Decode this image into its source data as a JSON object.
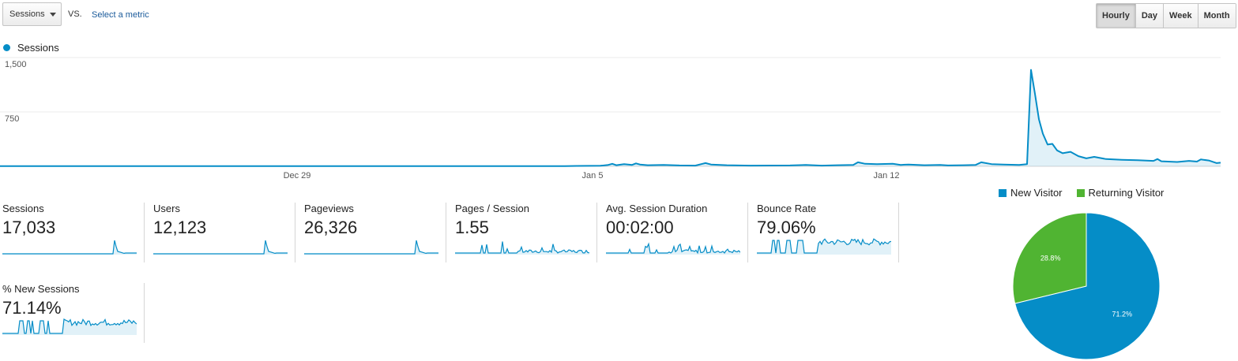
{
  "controls": {
    "metric_select": "Sessions",
    "vs": "VS.",
    "select_metric": "Select a metric",
    "granularity": [
      "Hourly",
      "Day",
      "Week",
      "Month"
    ],
    "granularity_active": "Hourly"
  },
  "chart_data": [
    {
      "type": "line",
      "legend": "Sessions",
      "color": "#058dc7",
      "y_ticks": [
        "1,500",
        "750"
      ],
      "x_labels": [
        "Dec 29",
        "Jan 5",
        "Jan 12"
      ],
      "ylim": [
        0,
        1500
      ],
      "grid": true,
      "series": [
        {
          "name": "Sessions",
          "points": [
            [
              0,
              2
            ],
            [
              715,
              2
            ],
            [
              730,
              5
            ],
            [
              760,
              8
            ],
            [
              770,
              20
            ],
            [
              775,
              35
            ],
            [
              780,
              15
            ],
            [
              790,
              30
            ],
            [
              800,
              20
            ],
            [
              805,
              40
            ],
            [
              810,
              25
            ],
            [
              820,
              15
            ],
            [
              840,
              20
            ],
            [
              860,
              12
            ],
            [
              880,
              10
            ],
            [
              893,
              45
            ],
            [
              900,
              25
            ],
            [
              920,
              15
            ],
            [
              950,
              10
            ],
            [
              1000,
              12
            ],
            [
              1020,
              18
            ],
            [
              1040,
              10
            ],
            [
              1060,
              15
            ],
            [
              1080,
              20
            ],
            [
              1086,
              55
            ],
            [
              1095,
              35
            ],
            [
              1110,
              30
            ],
            [
              1130,
              35
            ],
            [
              1140,
              20
            ],
            [
              1150,
              25
            ],
            [
              1170,
              15
            ],
            [
              1190,
              18
            ],
            [
              1200,
              12
            ],
            [
              1220,
              15
            ],
            [
              1235,
              20
            ],
            [
              1242,
              55
            ],
            [
              1255,
              30
            ],
            [
              1270,
              25
            ],
            [
              1290,
              20
            ],
            [
              1300,
              30
            ],
            [
              1305,
              1330
            ],
            [
              1310,
              1000
            ],
            [
              1315,
              650
            ],
            [
              1320,
              450
            ],
            [
              1326,
              300
            ],
            [
              1332,
              310
            ],
            [
              1338,
              220
            ],
            [
              1345,
              180
            ],
            [
              1355,
              200
            ],
            [
              1365,
              140
            ],
            [
              1375,
              110
            ],
            [
              1385,
              130
            ],
            [
              1400,
              100
            ],
            [
              1420,
              90
            ],
            [
              1440,
              85
            ],
            [
              1460,
              75
            ],
            [
              1465,
              100
            ],
            [
              1470,
              70
            ],
            [
              1490,
              60
            ],
            [
              1505,
              75
            ],
            [
              1515,
              65
            ],
            [
              1520,
              95
            ],
            [
              1530,
              80
            ],
            [
              1540,
              45
            ],
            [
              1545,
              50
            ]
          ]
        }
      ]
    },
    {
      "type": "pie",
      "legend": [
        "New Visitor",
        "Returning Visitor"
      ],
      "colors": [
        "#058dc7",
        "#50b432"
      ],
      "values": [
        71.2,
        28.8
      ],
      "labels": [
        "71.2%",
        "28.8%"
      ]
    }
  ],
  "scorecards": [
    {
      "label": "Sessions",
      "value": "17,033"
    },
    {
      "label": "Users",
      "value": "12,123"
    },
    {
      "label": "Pageviews",
      "value": "26,326"
    },
    {
      "label": "Pages / Session",
      "value": "1.55"
    },
    {
      "label": "Avg. Session Duration",
      "value": "00:02:00"
    },
    {
      "label": "Bounce Rate",
      "value": "79.06%"
    },
    {
      "label": "% New Sessions",
      "value": "71.14%"
    }
  ],
  "sparkline_color": "#058dc7"
}
